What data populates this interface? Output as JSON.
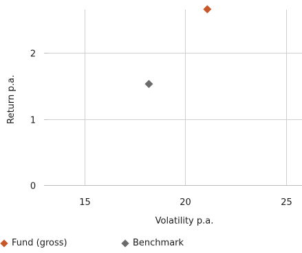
{
  "chart_data": {
    "type": "scatter",
    "xlabel": "Volatility p.a.",
    "ylabel": "Return p.a.",
    "xlim": [
      13.2,
      25.8
    ],
    "ylim": [
      0,
      2.8
    ],
    "xticks": [
      15,
      20,
      25
    ],
    "yticks": [
      0,
      1,
      2
    ],
    "grid": true,
    "legend_position": "bottom",
    "series": [
      {
        "name": "Fund (gross)",
        "color": "#c8582a",
        "marker": "diamond",
        "points": [
          {
            "x": 21.1,
            "y": 2.66
          }
        ]
      },
      {
        "name": "Benchmark",
        "color": "#6b6b6b",
        "marker": "diamond",
        "points": [
          {
            "x": 18.2,
            "y": 1.53
          }
        ]
      }
    ]
  }
}
